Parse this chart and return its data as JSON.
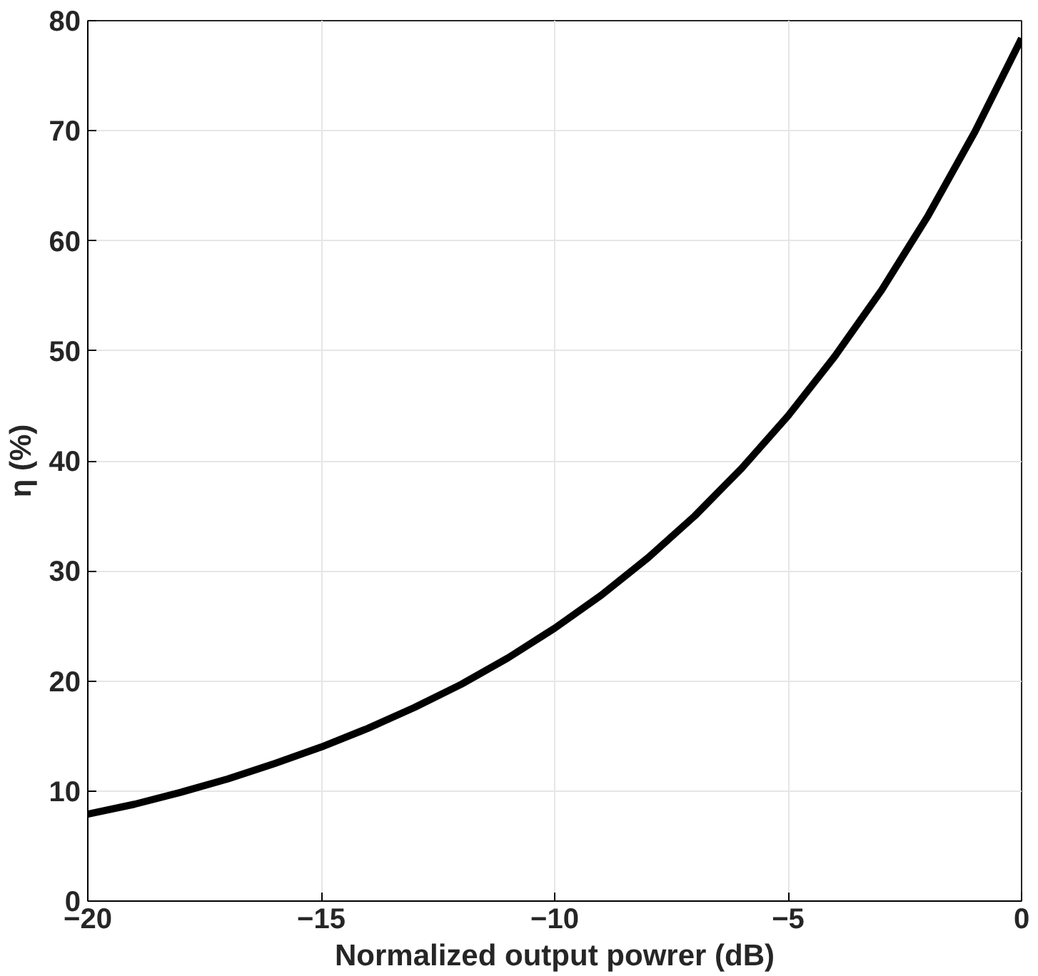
{
  "chart_data": {
    "type": "line",
    "xlabel": "Normalized output powrer (dB)",
    "ylabel": "η (%)",
    "x": [
      -20,
      -19,
      -18,
      -17,
      -16,
      -15,
      -14,
      -13,
      -12,
      -11,
      -10,
      -9,
      -8,
      -7,
      -6,
      -5,
      -4,
      -3,
      -2,
      -1,
      0
    ],
    "series": [
      {
        "color": "#000000",
        "values": [
          7.9,
          8.8,
          9.9,
          11.1,
          12.5,
          14.0,
          15.7,
          17.6,
          19.7,
          22.1,
          24.8,
          27.8,
          31.2,
          35.0,
          39.3,
          44.1,
          49.5,
          55.5,
          62.3,
          69.9,
          78.4
        ]
      }
    ],
    "xlim": [
      -20,
      0
    ],
    "ylim": [
      0,
      80
    ],
    "xticks": [
      -20,
      -15,
      -10,
      -5,
      0
    ],
    "yticks": [
      0,
      10,
      20,
      30,
      40,
      50,
      60,
      70,
      80
    ],
    "grid": true,
    "line_style": "solid",
    "marker": "none"
  }
}
